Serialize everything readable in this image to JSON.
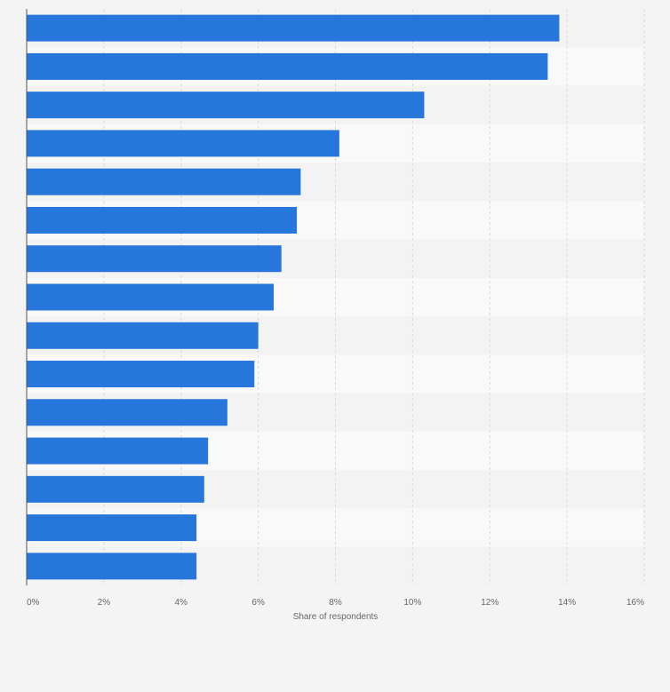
{
  "chart_data": {
    "type": "bar",
    "orientation": "horizontal",
    "categories": [
      "",
      "",
      "",
      "",
      "",
      "",
      "",
      "",
      "",
      "",
      "",
      "",
      "",
      "",
      ""
    ],
    "values": [
      13.8,
      13.5,
      10.3,
      8.1,
      7.1,
      7.0,
      6.6,
      6.4,
      6.0,
      5.9,
      5.2,
      4.7,
      4.6,
      4.4,
      4.4
    ],
    "xlabel": "Share of respondents",
    "ylabel": "",
    "xlim": [
      0,
      16
    ],
    "x_ticks": [
      0,
      2,
      4,
      6,
      8,
      10,
      12,
      14,
      16
    ],
    "x_tick_labels": [
      "0%",
      "2%",
      "4%",
      "6%",
      "8%",
      "10%",
      "12%",
      "14%",
      "16%"
    ],
    "grid": true,
    "legend": "none",
    "colors": {
      "bar": "#2776dc",
      "background": "#f4f4f4",
      "band_light": "#f9f9f9",
      "band_dark": "#f3f3f3",
      "grid": "#d9d9d9",
      "axis": "#555555",
      "text": "#666666"
    }
  }
}
